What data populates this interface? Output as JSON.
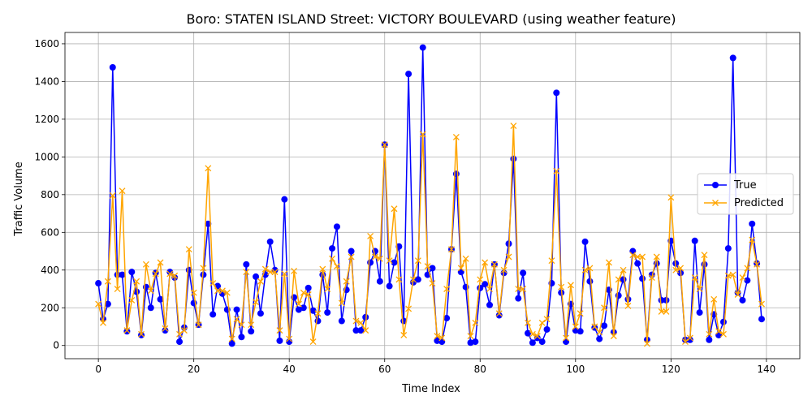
{
  "chart_data": {
    "type": "line",
    "title": "Boro: STATEN ISLAND Street: VICTORY BOULEVARD (using weather feature)",
    "xlabel": "Time Index",
    "ylabel": "Traffic Volume",
    "xlim": [
      -7,
      147
    ],
    "ylim": [
      -70,
      1660
    ],
    "x_ticks": [
      0,
      20,
      40,
      60,
      80,
      100,
      120,
      140
    ],
    "y_ticks": [
      0,
      200,
      400,
      600,
      800,
      1000,
      1200,
      1400,
      1600
    ],
    "grid": true,
    "legend": "center-right",
    "x": [
      0,
      1,
      2,
      3,
      4,
      5,
      6,
      7,
      8,
      9,
      10,
      11,
      12,
      13,
      14,
      15,
      16,
      17,
      18,
      19,
      20,
      21,
      22,
      23,
      24,
      25,
      26,
      27,
      28,
      29,
      30,
      31,
      32,
      33,
      34,
      35,
      36,
      37,
      38,
      39,
      40,
      41,
      42,
      43,
      44,
      45,
      46,
      47,
      48,
      49,
      50,
      51,
      52,
      53,
      54,
      55,
      56,
      57,
      58,
      59,
      60,
      61,
      62,
      63,
      64,
      65,
      66,
      67,
      68,
      69,
      70,
      71,
      72,
      73,
      74,
      75,
      76,
      77,
      78,
      79,
      80,
      81,
      82,
      83,
      84,
      85,
      86,
      87,
      88,
      89,
      90,
      91,
      92,
      93,
      94,
      95,
      96,
      97,
      98,
      99,
      100,
      101,
      102,
      103,
      104,
      105,
      106,
      107,
      108,
      109,
      110,
      111,
      112,
      113,
      114,
      115,
      116,
      117,
      118,
      119,
      120,
      121,
      122,
      123,
      124,
      125,
      126,
      127,
      128,
      129,
      130,
      131,
      132,
      133,
      134,
      135,
      136,
      137,
      138,
      139
    ],
    "series": [
      {
        "name": "True",
        "color": "#0000ff",
        "marker": "circle",
        "values": [
          330,
          140,
          220,
          1475,
          375,
          375,
          75,
          390,
          285,
          55,
          310,
          200,
          385,
          245,
          80,
          390,
          360,
          20,
          95,
          400,
          225,
          110,
          375,
          645,
          165,
          315,
          275,
          190,
          10,
          190,
          45,
          430,
          75,
          365,
          170,
          375,
          550,
          400,
          25,
          775,
          20,
          255,
          190,
          200,
          305,
          185,
          130,
          375,
          175,
          515,
          630,
          130,
          295,
          500,
          80,
          80,
          150,
          440,
          500,
          340,
          1065,
          315,
          440,
          525,
          130,
          1440,
          335,
          350,
          1580,
          375,
          410,
          25,
          20,
          145,
          510,
          910,
          390,
          310,
          15,
          20,
          305,
          325,
          215,
          430,
          160,
          385,
          540,
          990,
          250,
          385,
          65,
          15,
          40,
          20,
          85,
          330,
          1340,
          280,
          20,
          220,
          80,
          75,
          550,
          340,
          95,
          35,
          105,
          295,
          70,
          265,
          350,
          245,
          500,
          435,
          355,
          30,
          375,
          435,
          240,
          240,
          555,
          435,
          385,
          30,
          30,
          555,
          175,
          430,
          30,
          165,
          55,
          125,
          515,
          1525,
          280,
          240,
          345,
          645,
          435,
          140
        ]
      },
      {
        "name": "Predicted",
        "color": "#ffa500",
        "marker": "x",
        "values": [
          220,
          120,
          340,
          795,
          300,
          820,
          80,
          240,
          340,
          60,
          430,
          290,
          380,
          440,
          90,
          380,
          370,
          60,
          80,
          510,
          280,
          110,
          410,
          940,
          330,
          290,
          290,
          280,
          35,
          140,
          110,
          390,
          110,
          230,
          340,
          405,
          390,
          390,
          80,
          380,
          35,
          395,
          220,
          280,
          270,
          20,
          170,
          405,
          300,
          460,
          420,
          225,
          340,
          470,
          130,
          120,
          80,
          580,
          470,
          460,
          1065,
          450,
          725,
          350,
          55,
          195,
          350,
          450,
          1120,
          420,
          330,
          50,
          40,
          300,
          510,
          1105,
          410,
          460,
          50,
          120,
          350,
          440,
          300,
          430,
          170,
          400,
          470,
          1165,
          300,
          300,
          120,
          60,
          50,
          120,
          140,
          450,
          925,
          310,
          40,
          320,
          100,
          170,
          400,
          410,
          100,
          70,
          200,
          440,
          50,
          350,
          400,
          210,
          480,
          470,
          470,
          10,
          360,
          470,
          180,
          180,
          785,
          400,
          410,
          20,
          40,
          360,
          300,
          480,
          60,
          245,
          75,
          60,
          370,
          375,
          270,
          360,
          410,
          560,
          430,
          220
        ]
      }
    ]
  }
}
